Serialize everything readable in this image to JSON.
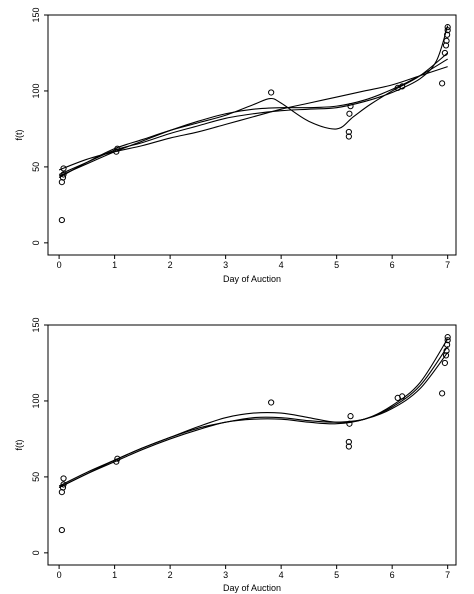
{
  "chart_data": [
    {
      "type": "scatter",
      "xlabel": "Day of Auction",
      "ylabel": "f(t)",
      "xlim": [
        -0.2,
        7.15
      ],
      "ylim": [
        -8,
        150
      ],
      "xticks": [
        0,
        1,
        2,
        3,
        4,
        5,
        6,
        7
      ],
      "yticks": [
        0,
        50,
        100,
        150
      ],
      "grid": false,
      "points": {
        "x": [
          0.05,
          0.05,
          0.07,
          0.08,
          0.08,
          1.03,
          1.05,
          3.82,
          5.22,
          5.22,
          5.23,
          5.25,
          6.1,
          6.18,
          6.9,
          6.95,
          6.97,
          6.98,
          6.99,
          7.0,
          7.0
        ],
        "y": [
          15,
          40,
          43,
          45,
          49,
          60,
          62,
          99,
          70,
          73,
          85,
          90,
          102,
          103,
          105,
          125,
          130,
          133,
          137,
          140,
          142
        ]
      },
      "series": [
        {
          "x": [
            0,
            0.5,
            1,
            1.5,
            2,
            2.5,
            3,
            3.5,
            3.8,
            4,
            4.5,
            5,
            5.3,
            5.6,
            6,
            6.5,
            7
          ],
          "y": [
            43,
            53,
            62,
            68,
            74,
            79,
            84,
            91,
            95,
            92,
            80,
            75,
            83,
            91,
            100,
            110,
            125
          ]
        },
        {
          "x": [
            0,
            0.5,
            1,
            1.5,
            2,
            2.5,
            3,
            3.5,
            4,
            4.5,
            5,
            5.5,
            6,
            6.5,
            6.8,
            7
          ],
          "y": [
            45,
            53,
            61,
            66,
            72,
            77,
            82,
            85,
            87,
            88,
            89,
            93,
            99,
            108,
            120,
            143
          ]
        },
        {
          "x": [
            0,
            0.5,
            1,
            1.5,
            2,
            2.5,
            3,
            3.5,
            4,
            4.5,
            5,
            5.5,
            6,
            6.5,
            7
          ],
          "y": [
            48,
            55,
            60,
            64,
            69,
            73,
            78,
            83,
            88,
            92,
            96,
            100,
            104,
            110,
            116
          ]
        },
        {
          "x": [
            0,
            0.5,
            1,
            1.5,
            2,
            2.5,
            3,
            3.5,
            4,
            4.5,
            5,
            5.5,
            6,
            6.5,
            7
          ],
          "y": [
            44,
            52,
            60,
            67,
            74,
            80,
            85,
            88,
            89,
            89,
            90,
            94,
            101,
            110,
            121
          ]
        }
      ]
    },
    {
      "type": "scatter",
      "xlabel": "Day of Auction",
      "ylabel": "f(t)",
      "xlim": [
        -0.2,
        7.15
      ],
      "ylim": [
        -8,
        150
      ],
      "xticks": [
        0,
        1,
        2,
        3,
        4,
        5,
        6,
        7
      ],
      "yticks": [
        0,
        50,
        100,
        150
      ],
      "grid": false,
      "points": {
        "x": [
          0.05,
          0.05,
          0.07,
          0.08,
          0.08,
          1.03,
          1.05,
          3.82,
          5.22,
          5.22,
          5.23,
          5.25,
          6.1,
          6.18,
          6.9,
          6.95,
          6.97,
          6.98,
          6.99,
          7.0,
          7.0
        ],
        "y": [
          15,
          40,
          43,
          45,
          49,
          60,
          62,
          99,
          70,
          73,
          85,
          90,
          102,
          103,
          105,
          125,
          130,
          133,
          137,
          140,
          142
        ]
      },
      "series": [
        {
          "x": [
            0,
            0.5,
            1,
            1.5,
            2,
            2.5,
            3,
            3.5,
            4,
            4.5,
            5,
            5.5,
            6,
            6.5,
            7
          ],
          "y": [
            43,
            52,
            61,
            69,
            76,
            83,
            89,
            92,
            92,
            89,
            86,
            88,
            97,
            112,
            141
          ]
        },
        {
          "x": [
            0,
            0.5,
            1,
            1.5,
            2,
            2.5,
            3,
            3.5,
            4,
            4.5,
            5,
            5.5,
            6,
            6.5,
            7
          ],
          "y": [
            44,
            53,
            61,
            69,
            76,
            82,
            86,
            89,
            89,
            87,
            86,
            88,
            95,
            108,
            132
          ]
        },
        {
          "x": [
            0,
            0.5,
            1,
            1.5,
            2,
            2.5,
            3,
            3.5,
            4,
            4.5,
            5,
            5.5,
            6,
            6.5,
            7
          ],
          "y": [
            43,
            52,
            60,
            68,
            75,
            81,
            86,
            88,
            88,
            86,
            85,
            88,
            96,
            110,
            136
          ]
        }
      ]
    }
  ]
}
